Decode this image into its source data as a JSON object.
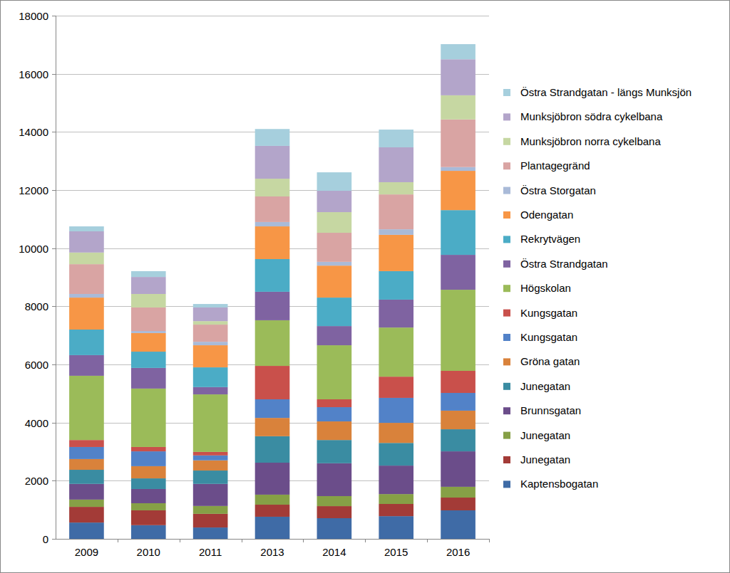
{
  "chart_data": {
    "type": "bar",
    "stacked": true,
    "grid": true,
    "legend": "right",
    "categories": [
      "2009",
      "2010",
      "2011",
      "2013",
      "2014",
      "2015",
      "2016"
    ],
    "ylim": [
      0,
      18000
    ],
    "yticks": [
      0,
      2000,
      4000,
      6000,
      8000,
      10000,
      12000,
      14000,
      16000,
      18000
    ],
    "series": [
      {
        "name": "Kaptensbogatan",
        "color": "#3f6ba6",
        "values": [
          560,
          470,
          390,
          760,
          710,
          780,
          980
        ]
      },
      {
        "name": "Junegatan",
        "color": "#a33b37",
        "values": [
          540,
          510,
          470,
          415,
          415,
          420,
          440
        ]
      },
      {
        "name": "Junegatan",
        "color": "#86a046",
        "values": [
          250,
          245,
          270,
          345,
          345,
          340,
          370
        ]
      },
      {
        "name": "Brunnsgatan",
        "color": "#6b4d8a",
        "values": [
          540,
          490,
          760,
          1100,
          1130,
          980,
          1220
        ]
      },
      {
        "name": "Junegatan",
        "color": "#3a8ca2",
        "values": [
          485,
          365,
          460,
          910,
          800,
          780,
          760
        ]
      },
      {
        "name": "Gröna gatan",
        "color": "#d9823b",
        "values": [
          370,
          420,
          350,
          630,
          640,
          690,
          640
        ]
      },
      {
        "name": "Kungsgatan",
        "color": "#5282c8",
        "values": [
          415,
          510,
          170,
          640,
          490,
          860,
          610
        ]
      },
      {
        "name": "Kungsgatan",
        "color": "#c9504b",
        "values": [
          240,
          150,
          120,
          1150,
          270,
          730,
          760
        ]
      },
      {
        "name": "Högskolan",
        "color": "#9bbb59",
        "values": [
          2210,
          2010,
          1980,
          1570,
          1860,
          1690,
          2790
        ]
      },
      {
        "name": "Östra Strandgatan",
        "color": "#7f63a1",
        "values": [
          710,
          710,
          250,
          980,
          660,
          960,
          1200
        ]
      },
      {
        "name": "Rekrytvägen",
        "color": "#4bacc6",
        "values": [
          880,
          560,
          680,
          1125,
          980,
          980,
          1540
        ]
      },
      {
        "name": "Odengatan",
        "color": "#f79646",
        "values": [
          1100,
          640,
          760,
          1125,
          1100,
          1250,
          1350
        ]
      },
      {
        "name": "Östra Storgatan",
        "color": "#a9bad8",
        "values": [
          125,
          70,
          120,
          150,
          130,
          190,
          130
        ]
      },
      {
        "name": "Plantagegränd",
        "color": "#d9a4a3",
        "values": [
          1025,
          810,
          590,
          880,
          1000,
          1200,
          1640
        ]
      },
      {
        "name": "Munksjöbron norra cykelbana",
        "color": "#c6d7a2",
        "values": [
          400,
          465,
          120,
          610,
          710,
          420,
          830
        ]
      },
      {
        "name": "Munksjöbron södra cykelbana",
        "color": "#b3a5ca",
        "values": [
          730,
          585,
          470,
          1130,
          735,
          1200,
          1240
        ]
      },
      {
        "name": "Östra Strandgatan - längs Munksjön",
        "color": "#a6cfdd",
        "values": [
          170,
          200,
          120,
          580,
          635,
          610,
          520
        ]
      }
    ]
  }
}
